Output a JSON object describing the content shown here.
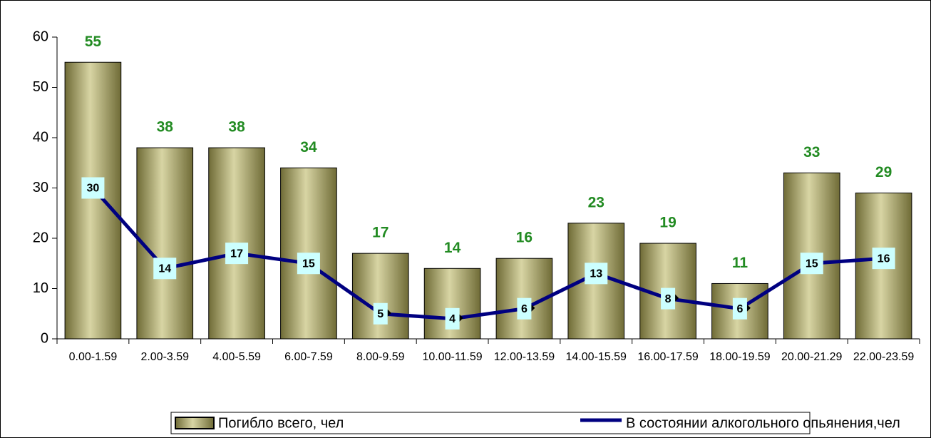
{
  "chart_data": {
    "type": "bar_line",
    "categories": [
      "0.00-1.59",
      "2.00-3.59",
      "4.00-5.59",
      "6.00-7.59",
      "8.00-9.59",
      "10.00-11.59",
      "12.00-13.59",
      "14.00-15.59",
      "16.00-17.59",
      "18.00-19.59",
      "20.00-21.29",
      "22.00-23.59"
    ],
    "series": [
      {
        "name": "Погибло всего, чел",
        "type": "bar",
        "color": "#a8a46a",
        "values": [
          55,
          38,
          38,
          34,
          17,
          14,
          16,
          23,
          19,
          11,
          33,
          29
        ]
      },
      {
        "name": "В состоянии алкогольного опьянения,чел",
        "type": "line",
        "color": "#000080",
        "values": [
          30,
          14,
          17,
          15,
          5,
          4,
          6,
          13,
          8,
          6,
          15,
          16
        ]
      }
    ],
    "ylim": [
      0,
      60
    ],
    "yticks": [
      0,
      10,
      20,
      30,
      40,
      50,
      60
    ],
    "grid": false,
    "legend": "bottom"
  }
}
